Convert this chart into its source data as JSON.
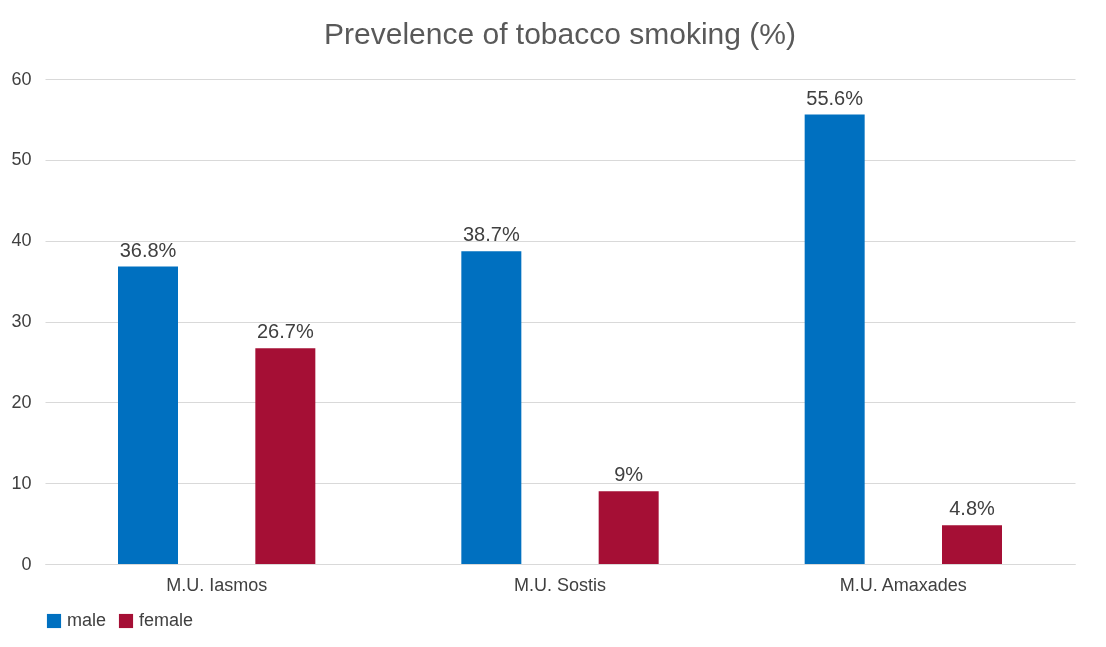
{
  "chart_data": {
    "type": "bar",
    "title": "Prevelence of tobacco smoking (%)",
    "categories": [
      "M.U. Iasmos",
      "M.U. Sostis",
      "M.U. Amaxades"
    ],
    "series": [
      {
        "name": "male",
        "color": "#0070c0",
        "values": [
          36.8,
          38.7,
          55.6
        ],
        "value_labels": [
          "36.8%",
          "38.7%",
          "55.6%"
        ]
      },
      {
        "name": "female",
        "color": "#a50f35",
        "values": [
          26.7,
          9,
          4.8
        ],
        "value_labels": [
          "26.7%",
          "9%",
          "4.8%"
        ]
      }
    ],
    "ylim": [
      0,
      60
    ],
    "yticks": [
      0,
      10,
      20,
      30,
      40,
      50,
      60
    ],
    "grid": "y",
    "legend": "bottom"
  }
}
